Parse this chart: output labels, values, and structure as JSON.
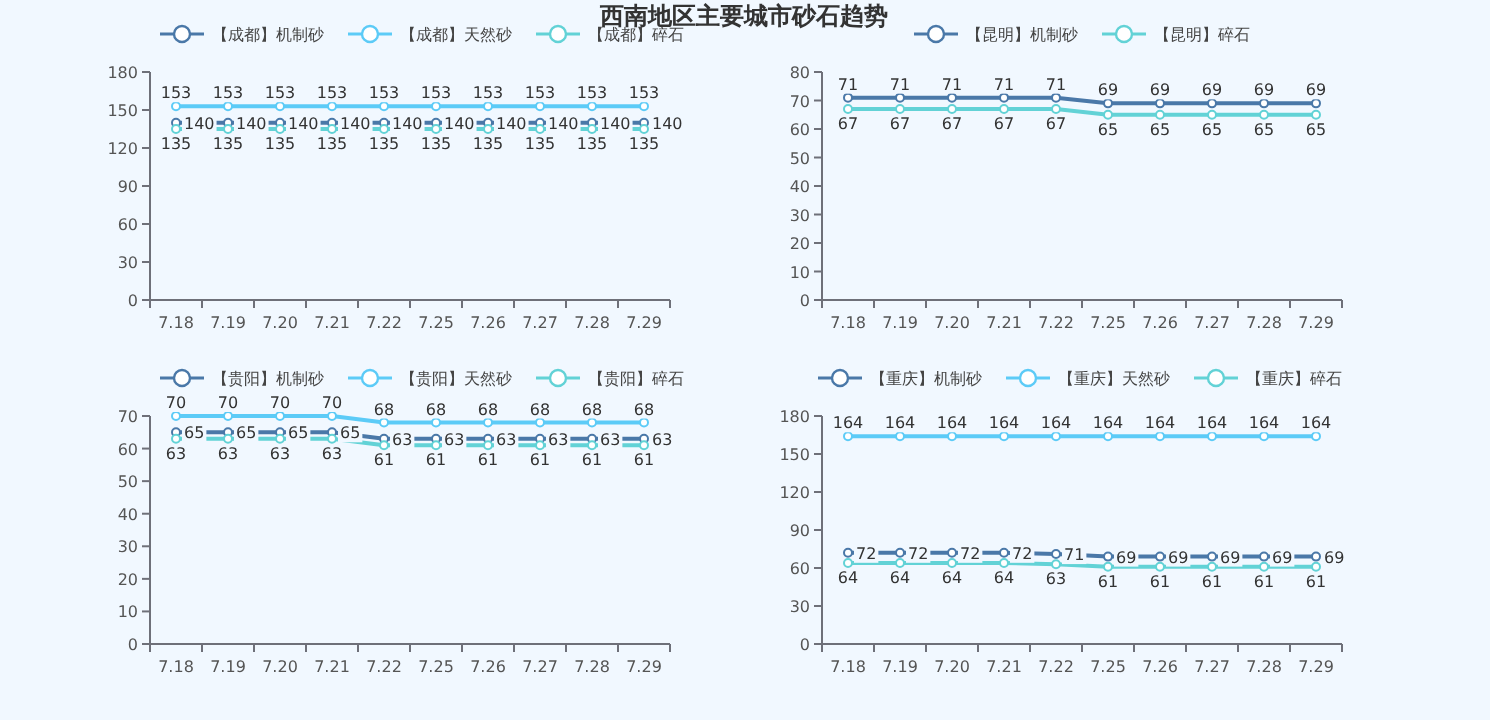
{
  "chart_data": [
    {
      "type": "line",
      "title": "西南地区主要城市砂石趋势",
      "categories": [
        "7.18",
        "7.19",
        "7.20",
        "7.21",
        "7.22",
        "7.25",
        "7.26",
        "7.27",
        "7.28",
        "7.29"
      ],
      "series": [
        {
          "name": "【成都】机制砂",
          "color": "#4a78a8",
          "values": [
            140,
            140,
            140,
            140,
            140,
            140,
            140,
            140,
            140,
            140
          ]
        },
        {
          "name": "【成都】天然砂",
          "color": "#5ccbf7",
          "values": [
            153,
            153,
            153,
            153,
            153,
            153,
            153,
            153,
            153,
            153
          ]
        },
        {
          "name": "【成都】碎石",
          "color": "#62d2d6",
          "values": [
            135,
            135,
            135,
            135,
            135,
            135,
            135,
            135,
            135,
            135
          ]
        }
      ],
      "ylim": [
        0,
        180
      ],
      "yticks": [
        0,
        30,
        60,
        90,
        120,
        150,
        180
      ],
      "data_labels": true,
      "legend": "top left",
      "marker": "circle"
    },
    {
      "type": "line",
      "categories": [
        "7.18",
        "7.19",
        "7.20",
        "7.21",
        "7.22",
        "7.25",
        "7.26",
        "7.27",
        "7.28",
        "7.29"
      ],
      "series": [
        {
          "name": "【昆明】机制砂",
          "color": "#4a78a8",
          "values": [
            71,
            71,
            71,
            71,
            71,
            69,
            69,
            69,
            69,
            69
          ]
        },
        {
          "name": "【昆明】碎石",
          "color": "#62d2d6",
          "values": [
            67,
            67,
            67,
            67,
            67,
            65,
            65,
            65,
            65,
            65
          ]
        }
      ],
      "ylim": [
        0,
        80
      ],
      "yticks": [
        0,
        10,
        20,
        30,
        40,
        50,
        60,
        70,
        80
      ],
      "data_labels": true,
      "legend": "top",
      "marker": "circle"
    },
    {
      "type": "line",
      "categories": [
        "7.18",
        "7.19",
        "7.20",
        "7.21",
        "7.22",
        "7.25",
        "7.26",
        "7.27",
        "7.28",
        "7.29"
      ],
      "series": [
        {
          "name": "【贵阳】机制砂",
          "color": "#4a78a8",
          "values": [
            65,
            65,
            65,
            65,
            63,
            63,
            63,
            63,
            63,
            63
          ]
        },
        {
          "name": "【贵阳】天然砂",
          "color": "#5ccbf7",
          "values": [
            70,
            70,
            70,
            70,
            68,
            68,
            68,
            68,
            68,
            68
          ]
        },
        {
          "name": "【贵阳】碎石",
          "color": "#62d2d6",
          "values": [
            63,
            63,
            63,
            63,
            61,
            61,
            61,
            61,
            61,
            61
          ]
        }
      ],
      "ylim": [
        0,
        70
      ],
      "yticks": [
        0,
        10,
        20,
        30,
        40,
        50,
        60,
        70
      ],
      "data_labels": true,
      "legend": "top left",
      "marker": "circle"
    },
    {
      "type": "line",
      "categories": [
        "7.18",
        "7.19",
        "7.20",
        "7.21",
        "7.22",
        "7.25",
        "7.26",
        "7.27",
        "7.28",
        "7.29"
      ],
      "series": [
        {
          "name": "【重庆】机制砂",
          "color": "#4a78a8",
          "values": [
            72,
            72,
            72,
            72,
            71,
            69,
            69,
            69,
            69,
            69
          ]
        },
        {
          "name": "【重庆】天然砂",
          "color": "#5ccbf7",
          "values": [
            164,
            164,
            164,
            164,
            164,
            164,
            164,
            164,
            164,
            164
          ]
        },
        {
          "name": "【重庆】碎石",
          "color": "#62d2d6",
          "values": [
            64,
            64,
            64,
            64,
            63,
            61,
            61,
            61,
            61,
            61
          ]
        }
      ],
      "ylim": [
        0,
        180
      ],
      "yticks": [
        0,
        30,
        60,
        90,
        120,
        150,
        180
      ],
      "data_labels": true,
      "legend": "top right",
      "marker": "circle"
    }
  ]
}
